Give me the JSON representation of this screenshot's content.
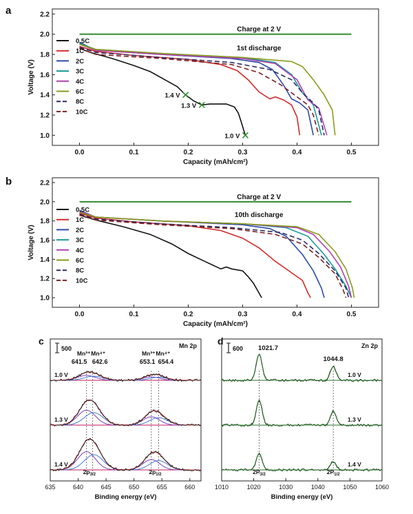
{
  "chart_data": [
    {
      "panel": "a",
      "type": "line",
      "xlabel": "Capacity (mAh/cm²)",
      "ylabel": "Voltage (V)",
      "xlim": [
        -0.05,
        0.55
      ],
      "ylim": [
        0.9,
        2.25
      ],
      "xticks": [
        "0.0",
        "0.1",
        "0.2",
        "0.3",
        "0.4",
        "0.5"
      ],
      "yticks": [
        "1.0",
        "1.2",
        "1.4",
        "1.6",
        "1.8",
        "2.0",
        "2.2"
      ],
      "charge_label": "Charge at 2 V",
      "curve_label": "1st discharge",
      "charge_line": {
        "x": [
          0.0,
          0.5
        ],
        "y": [
          2.0,
          2.0
        ],
        "color": "#2e8b2e"
      },
      "markers": [
        {
          "label": "1.4 V",
          "x": 0.195,
          "y": 1.4
        },
        {
          "label": "1.3 V",
          "x": 0.225,
          "y": 1.3
        },
        {
          "label": "1.0 V",
          "x": 0.305,
          "y": 1.0
        }
      ],
      "series": [
        {
          "name": "0.5C",
          "color": "#111111",
          "dash": "",
          "x": [
            0,
            0.02,
            0.06,
            0.1,
            0.13,
            0.16,
            0.18,
            0.195,
            0.21,
            0.225,
            0.24,
            0.27,
            0.285,
            0.292,
            0.297,
            0.302,
            0.305
          ],
          "y": [
            1.86,
            1.82,
            1.76,
            1.69,
            1.63,
            1.54,
            1.48,
            1.4,
            1.34,
            1.3,
            1.31,
            1.31,
            1.28,
            1.22,
            1.14,
            1.05,
            1.0
          ]
        },
        {
          "name": "1C",
          "color": "#d22a2a",
          "dash": "",
          "x": [
            0,
            0.03,
            0.1,
            0.2,
            0.26,
            0.29,
            0.31,
            0.33,
            0.35,
            0.36,
            0.375,
            0.39,
            0.4,
            0.405
          ],
          "y": [
            1.88,
            1.83,
            1.79,
            1.75,
            1.7,
            1.64,
            1.55,
            1.43,
            1.36,
            1.38,
            1.35,
            1.3,
            1.18,
            1.0
          ]
        },
        {
          "name": "2C",
          "color": "#2a4aa8",
          "dash": "",
          "x": [
            0,
            0.03,
            0.15,
            0.28,
            0.33,
            0.355,
            0.375,
            0.39,
            0.405,
            0.42,
            0.43
          ],
          "y": [
            1.92,
            1.84,
            1.8,
            1.76,
            1.72,
            1.65,
            1.5,
            1.36,
            1.32,
            1.25,
            1.0
          ]
        },
        {
          "name": "3C",
          "color": "#1a9a9a",
          "dash": "",
          "x": [
            0,
            0.03,
            0.15,
            0.3,
            0.36,
            0.39,
            0.41,
            0.43,
            0.445
          ],
          "y": [
            1.91,
            1.85,
            1.81,
            1.77,
            1.72,
            1.6,
            1.42,
            1.3,
            1.0
          ]
        },
        {
          "name": "4C",
          "color": "#b040b0",
          "dash": "",
          "x": [
            0,
            0.03,
            0.15,
            0.3,
            0.36,
            0.4,
            0.42,
            0.44,
            0.455
          ],
          "y": [
            1.9,
            1.84,
            1.8,
            1.76,
            1.71,
            1.55,
            1.35,
            1.27,
            1.0
          ]
        },
        {
          "name": "6C",
          "color": "#8a9a1a",
          "dash": "",
          "x": [
            0,
            0.03,
            0.15,
            0.3,
            0.39,
            0.41,
            0.43,
            0.45,
            0.465,
            0.47
          ],
          "y": [
            1.9,
            1.85,
            1.81,
            1.77,
            1.73,
            1.68,
            1.55,
            1.4,
            1.25,
            1.0
          ]
        },
        {
          "name": "8C",
          "color": "#2a2a66",
          "dash": "7,4",
          "x": [
            0,
            0.03,
            0.15,
            0.28,
            0.35,
            0.39,
            0.41,
            0.43,
            0.44,
            0.45
          ],
          "y": [
            1.87,
            1.82,
            1.77,
            1.72,
            1.65,
            1.55,
            1.42,
            1.32,
            1.25,
            1.0
          ]
        },
        {
          "name": "10C",
          "color": "#7a2020",
          "dash": "7,4",
          "x": [
            0,
            0.03,
            0.15,
            0.28,
            0.33,
            0.37,
            0.4,
            0.42,
            0.43,
            0.44
          ],
          "y": [
            1.86,
            1.8,
            1.76,
            1.7,
            1.62,
            1.5,
            1.38,
            1.3,
            1.2,
            1.0
          ]
        }
      ]
    },
    {
      "panel": "b",
      "type": "line",
      "xlabel": "Capacity (mAh/cm²)",
      "ylabel": "Voltage (V)",
      "xlim": [
        -0.05,
        0.55
      ],
      "ylim": [
        0.9,
        2.25
      ],
      "xticks": [
        "0.0",
        "0.1",
        "0.2",
        "0.3",
        "0.4",
        "0.5"
      ],
      "yticks": [
        "1.0",
        "1.2",
        "1.4",
        "1.6",
        "1.8",
        "2.0",
        "2.2"
      ],
      "charge_label": "Charge at 2 V",
      "curve_label": "10th discharge",
      "charge_line": {
        "x": [
          0.0,
          0.5
        ],
        "y": [
          2.0,
          2.0
        ],
        "color": "#2e8b2e"
      },
      "markers": [],
      "series": [
        {
          "name": "0.5C",
          "color": "#111111",
          "dash": "",
          "x": [
            0,
            0.03,
            0.08,
            0.13,
            0.17,
            0.2,
            0.23,
            0.26,
            0.27,
            0.28,
            0.3,
            0.31,
            0.32,
            0.33,
            0.335
          ],
          "y": [
            1.86,
            1.81,
            1.74,
            1.66,
            1.56,
            1.46,
            1.38,
            1.3,
            1.32,
            1.3,
            1.28,
            1.22,
            1.15,
            1.05,
            1.0
          ]
        },
        {
          "name": "1C",
          "color": "#d22a2a",
          "dash": "",
          "x": [
            0,
            0.03,
            0.1,
            0.2,
            0.26,
            0.3,
            0.33,
            0.36,
            0.39,
            0.41,
            0.42,
            0.425
          ],
          "y": [
            1.88,
            1.83,
            1.79,
            1.75,
            1.7,
            1.62,
            1.52,
            1.38,
            1.26,
            1.18,
            1.05,
            1.0
          ]
        },
        {
          "name": "2C",
          "color": "#2a4aa8",
          "dash": "",
          "x": [
            0,
            0.03,
            0.15,
            0.3,
            0.35,
            0.38,
            0.41,
            0.43,
            0.445,
            0.45
          ],
          "y": [
            1.91,
            1.84,
            1.8,
            1.76,
            1.72,
            1.64,
            1.45,
            1.28,
            1.1,
            1.0
          ]
        },
        {
          "name": "3C",
          "color": "#1a9a9a",
          "dash": "",
          "x": [
            0,
            0.03,
            0.15,
            0.3,
            0.38,
            0.42,
            0.45,
            0.47,
            0.49,
            0.5
          ],
          "y": [
            1.9,
            1.84,
            1.8,
            1.77,
            1.73,
            1.64,
            1.45,
            1.3,
            1.12,
            1.0
          ]
        },
        {
          "name": "4C",
          "color": "#b040b0",
          "dash": "",
          "x": [
            0,
            0.03,
            0.15,
            0.3,
            0.4,
            0.43,
            0.46,
            0.48,
            0.495,
            0.5
          ],
          "y": [
            1.9,
            1.84,
            1.8,
            1.77,
            1.73,
            1.66,
            1.48,
            1.32,
            1.12,
            1.0
          ]
        },
        {
          "name": "6C",
          "color": "#8a9a1a",
          "dash": "",
          "x": [
            0,
            0.03,
            0.15,
            0.3,
            0.4,
            0.44,
            0.47,
            0.49,
            0.502,
            0.505
          ],
          "y": [
            1.89,
            1.84,
            1.8,
            1.77,
            1.74,
            1.66,
            1.48,
            1.3,
            1.1,
            1.0
          ]
        },
        {
          "name": "8C",
          "color": "#2a2a66",
          "dash": "7,4",
          "x": [
            0,
            0.03,
            0.15,
            0.28,
            0.37,
            0.41,
            0.44,
            0.47,
            0.49,
            0.495
          ],
          "y": [
            1.87,
            1.82,
            1.77,
            1.73,
            1.68,
            1.6,
            1.46,
            1.28,
            1.1,
            1.0
          ]
        },
        {
          "name": "10C",
          "color": "#7a2020",
          "dash": "7,4",
          "x": [
            0,
            0.03,
            0.15,
            0.28,
            0.36,
            0.41,
            0.44,
            0.47,
            0.485,
            0.49
          ],
          "y": [
            1.86,
            1.81,
            1.76,
            1.72,
            1.66,
            1.56,
            1.42,
            1.25,
            1.08,
            1.0
          ]
        }
      ]
    },
    {
      "panel": "c",
      "type": "line",
      "title": "Mn 2p",
      "xlabel": "Binding energy (eV)",
      "xlim": [
        635,
        662
      ],
      "xticks": [
        "635",
        "640",
        "645",
        "650",
        "655",
        "660"
      ],
      "scale_label": "500",
      "peak_labels": [
        "Mn³⁺",
        "Mn⁴⁺",
        "641.5",
        "642.6",
        "Mn³⁺",
        "Mn⁴⁺",
        "653.1",
        "654.4"
      ],
      "peak_positions": [
        641.5,
        642.6,
        653.1,
        654.4
      ],
      "orbital_labels": [
        {
          "text": "2p",
          "sub": "3/2",
          "x": 642
        },
        {
          "text": "2p",
          "sub": "1/2",
          "x": 653.8
        }
      ],
      "spectra": [
        {
          "label": "1.0 V",
          "a1": 12,
          "a2": 10
        },
        {
          "label": "1.3 V",
          "a1": 36,
          "a2": 24
        },
        {
          "label": "1.4 V",
          "a1": 44,
          "a2": 30
        }
      ]
    },
    {
      "panel": "d",
      "type": "line",
      "title": "Zn 2p",
      "xlabel": "Binding energy (eV)",
      "xlim": [
        1010,
        1060
      ],
      "xticks": [
        "1010",
        "1020",
        "1030",
        "1040",
        "1050",
        "1060"
      ],
      "scale_label": "600",
      "peak_positions": [
        1021.7,
        1044.8
      ],
      "peak_value_labels": [
        "1021.7",
        "1044.8"
      ],
      "orbital_labels": [
        {
          "text": "2P",
          "sub": "3/2",
          "x": 1021.7
        },
        {
          "text": "2P",
          "sub": "1/2",
          "x": 1044.8
        }
      ],
      "spectra": [
        {
          "label": "1.0 V",
          "a1": 38,
          "a2": 20
        },
        {
          "label": "1.3 V",
          "a1": 36,
          "a2": 20
        },
        {
          "label": "1.4 V",
          "a1": 24,
          "a2": 12
        }
      ]
    }
  ]
}
